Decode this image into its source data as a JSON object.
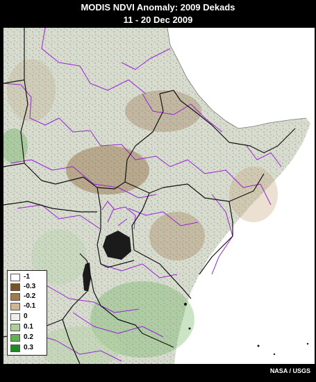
{
  "header": {
    "title": "MODIS NDVI Anomaly: 2009 Dekads",
    "subtitle": "11 - 20 Dec 2009"
  },
  "legend": {
    "items": [
      {
        "label": "-1",
        "color": "#ffffff"
      },
      {
        "label": "-0.3",
        "color": "#7a5226"
      },
      {
        "label": "-0.2",
        "color": "#a27a4c"
      },
      {
        "label": "-0.1",
        "color": "#d0b592"
      },
      {
        "label": "0",
        "color": "#eeeeea"
      },
      {
        "label": "0.1",
        "color": "#a9d098"
      },
      {
        "label": "0.2",
        "color": "#63b055"
      },
      {
        "label": "0.3",
        "color": "#1f8a1f"
      }
    ]
  },
  "credit": "NASA / USGS",
  "colors": {
    "background": "#000000",
    "land": "#d9dcd2",
    "sea": "#ffffff",
    "country_border": "#111111",
    "admin_border": "#9a22d8",
    "lake": "#1b1b1b"
  }
}
